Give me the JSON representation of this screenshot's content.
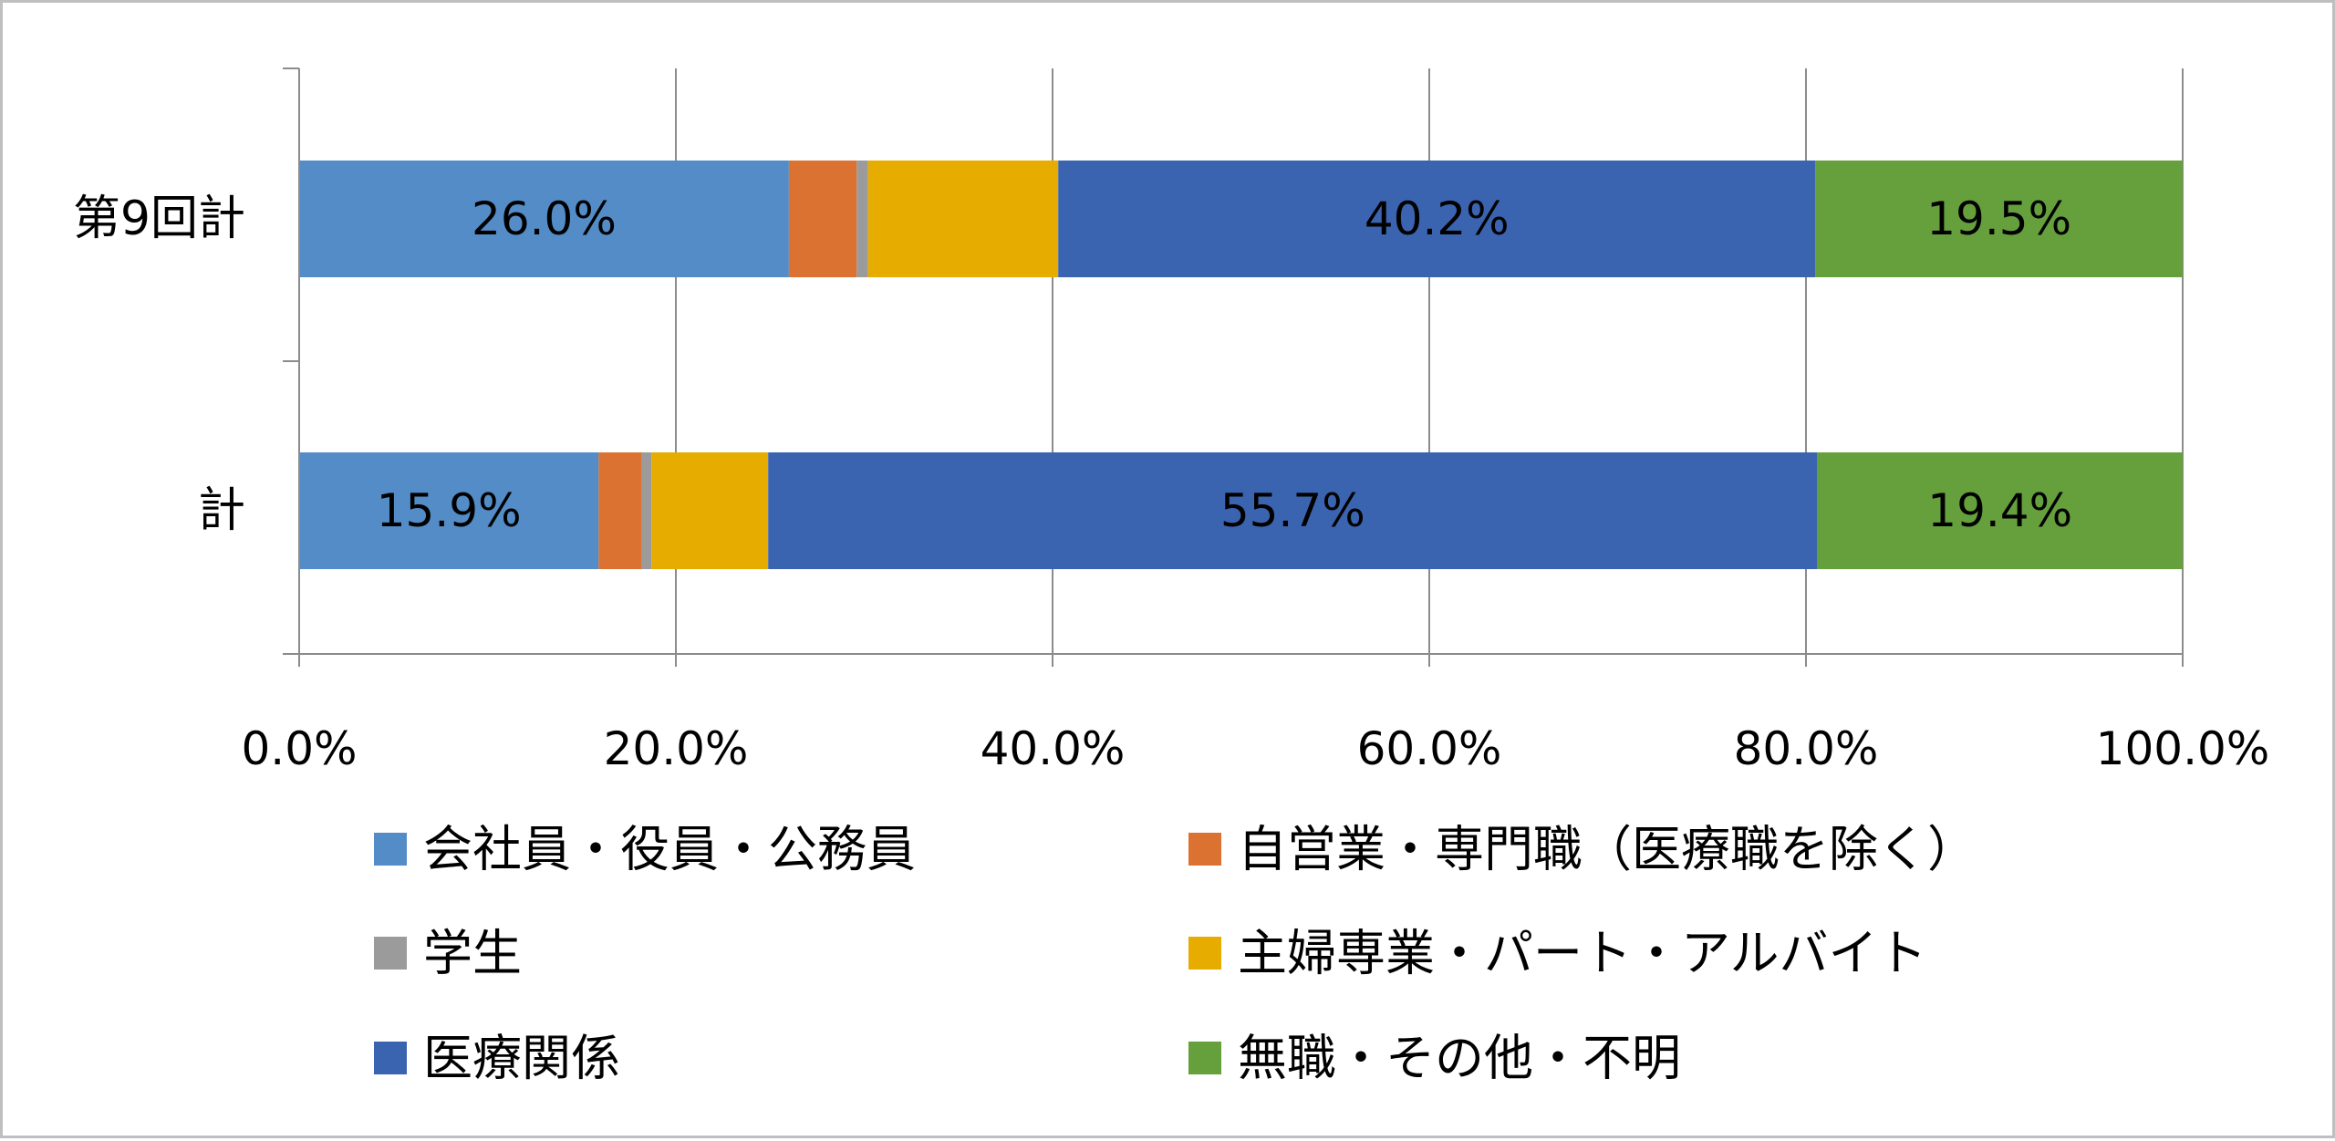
{
  "chart_data": {
    "type": "bar",
    "orientation": "horizontal",
    "stacked": "percent",
    "categories": [
      "第9回計",
      "計"
    ],
    "series": [
      {
        "name": "会社員・役員・公務員",
        "color": "#538cc6",
        "values": [
          26.0,
          15.9
        ],
        "labels": [
          "26.0%",
          "15.9%"
        ]
      },
      {
        "name": "自営業・専門職（医療職を除く）",
        "color": "#dc7231",
        "values": [
          3.6,
          2.3
        ],
        "labels": [
          "",
          ""
        ]
      },
      {
        "name": "学生",
        "color": "#9b9b9b",
        "values": [
          0.6,
          0.5
        ],
        "labels": [
          "",
          ""
        ]
      },
      {
        "name": "主婦専業・パート・アルバイト",
        "color": "#e6ad00",
        "values": [
          10.1,
          6.2
        ],
        "labels": [
          "",
          ""
        ]
      },
      {
        "name": "医療関係",
        "color": "#3b64b0",
        "values": [
          40.2,
          55.7
        ],
        "labels": [
          "40.2%",
          "55.7%"
        ]
      },
      {
        "name": "無職・その他・不明",
        "color": "#65a03d",
        "values": [
          19.5,
          19.4
        ],
        "labels": [
          "19.5%",
          "19.4%"
        ]
      }
    ],
    "xlim": [
      0,
      100
    ],
    "xticks": [
      0,
      20,
      40,
      60,
      80,
      100
    ],
    "xtick_labels": [
      "0.0%",
      "20.0%",
      "40.0%",
      "60.0%",
      "80.0%",
      "100.0%"
    ],
    "grid": true,
    "legend_position": "bottom",
    "legend_columns": 2,
    "title": "",
    "xlabel": "",
    "ylabel": ""
  }
}
